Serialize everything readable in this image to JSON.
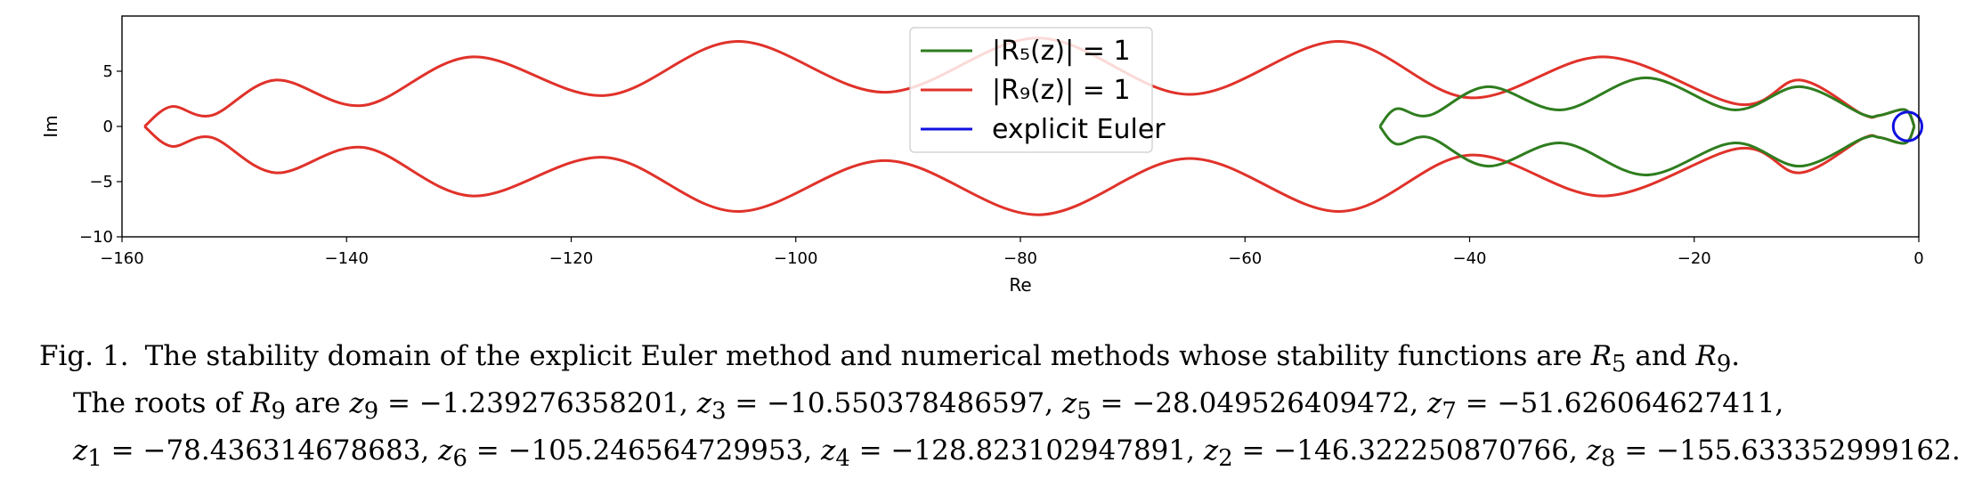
{
  "chart_data": {
    "type": "line",
    "xlabel": "Re",
    "ylabel": "Im",
    "xlim": [
      -160,
      0
    ],
    "ylim": [
      -10,
      10
    ],
    "xticks": [
      -160,
      -140,
      -120,
      -100,
      -80,
      -60,
      -40,
      -20,
      0
    ],
    "xtick_labels": [
      "−160",
      "−140",
      "−120",
      "−100",
      "−80",
      "−60",
      "−40",
      "−20",
      "0"
    ],
    "yticks": [
      -10,
      -5,
      0,
      5
    ],
    "ytick_labels": [
      "−10",
      "−5",
      "0",
      "5"
    ],
    "grid": false,
    "legend_position": "top-center",
    "legend": [
      {
        "label": "|R₅(z)| = 1",
        "color": "#2e7d1e"
      },
      {
        "label": "|R₉(z)| = 1",
        "color": "#e0322a"
      },
      {
        "label": "explicit Euler",
        "color": "#1010e0"
      }
    ],
    "series": [
      {
        "name": "|R₉(z)| = 1",
        "color": "#e0322a",
        "nodes": [
          [
            -0.4,
            0.0
          ],
          [
            -1.2,
            1.5
          ],
          [
            -3.5,
            1.0
          ],
          [
            -5.0,
            1.1
          ],
          [
            -10.6,
            4.2
          ],
          [
            -16.0,
            2.0
          ],
          [
            -28.0,
            6.3
          ],
          [
            -40.0,
            2.6
          ],
          [
            -51.6,
            7.7
          ],
          [
            -65.0,
            2.9
          ],
          [
            -78.4,
            8.0
          ],
          [
            -92.0,
            3.1
          ],
          [
            -105.2,
            7.7
          ],
          [
            -117.0,
            2.8
          ],
          [
            -128.8,
            6.3
          ],
          [
            -138.5,
            1.9
          ],
          [
            -146.3,
            4.2
          ],
          [
            -152.0,
            1.0
          ],
          [
            -155.6,
            1.8
          ],
          [
            -158.0,
            0.0
          ]
        ]
      },
      {
        "name": "|R₅(z)| = 1",
        "color": "#2e7d1e",
        "nodes": [
          [
            -0.4,
            0.0
          ],
          [
            -1.2,
            1.5
          ],
          [
            -3.5,
            1.0
          ],
          [
            -5.0,
            1.1
          ],
          [
            -10.6,
            3.6
          ],
          [
            -16.5,
            1.5
          ],
          [
            -24.3,
            4.4
          ],
          [
            -31.8,
            1.5
          ],
          [
            -38.4,
            3.6
          ],
          [
            -43.6,
            1.0
          ],
          [
            -46.5,
            1.6
          ],
          [
            -48.0,
            0.0
          ]
        ]
      },
      {
        "name": "explicit Euler",
        "color": "#1010e0",
        "center": [
          -1,
          0
        ],
        "radius": 1
      }
    ]
  },
  "caption": {
    "fig_label": "Fig. 1.",
    "line1_text": "The stability domain of the explicit Euler method and numerical methods whose stability functions are ",
    "R5": "R",
    "sub5": "5",
    "and_word": " and ",
    "R9": "R",
    "sub9": "9",
    "line1_end": ".",
    "line2_start": "The roots of ",
    "line2_are": " are ",
    "roots_line2": [
      {
        "sub": "9",
        "value": "−1.239276358201"
      },
      {
        "sub": "3",
        "value": "−10.550378486597"
      },
      {
        "sub": "5",
        "value": "−28.049526409472"
      },
      {
        "sub": "7",
        "value": "−51.626064627411"
      }
    ],
    "roots_line3": [
      {
        "sub": "1",
        "value": "−78.436314678683"
      },
      {
        "sub": "6",
        "value": "−105.246564729953"
      },
      {
        "sub": "4",
        "value": "−128.823102947891"
      },
      {
        "sub": "2",
        "value": "−146.322250870766"
      },
      {
        "sub": "8",
        "value": "−155.633352999162"
      }
    ]
  }
}
